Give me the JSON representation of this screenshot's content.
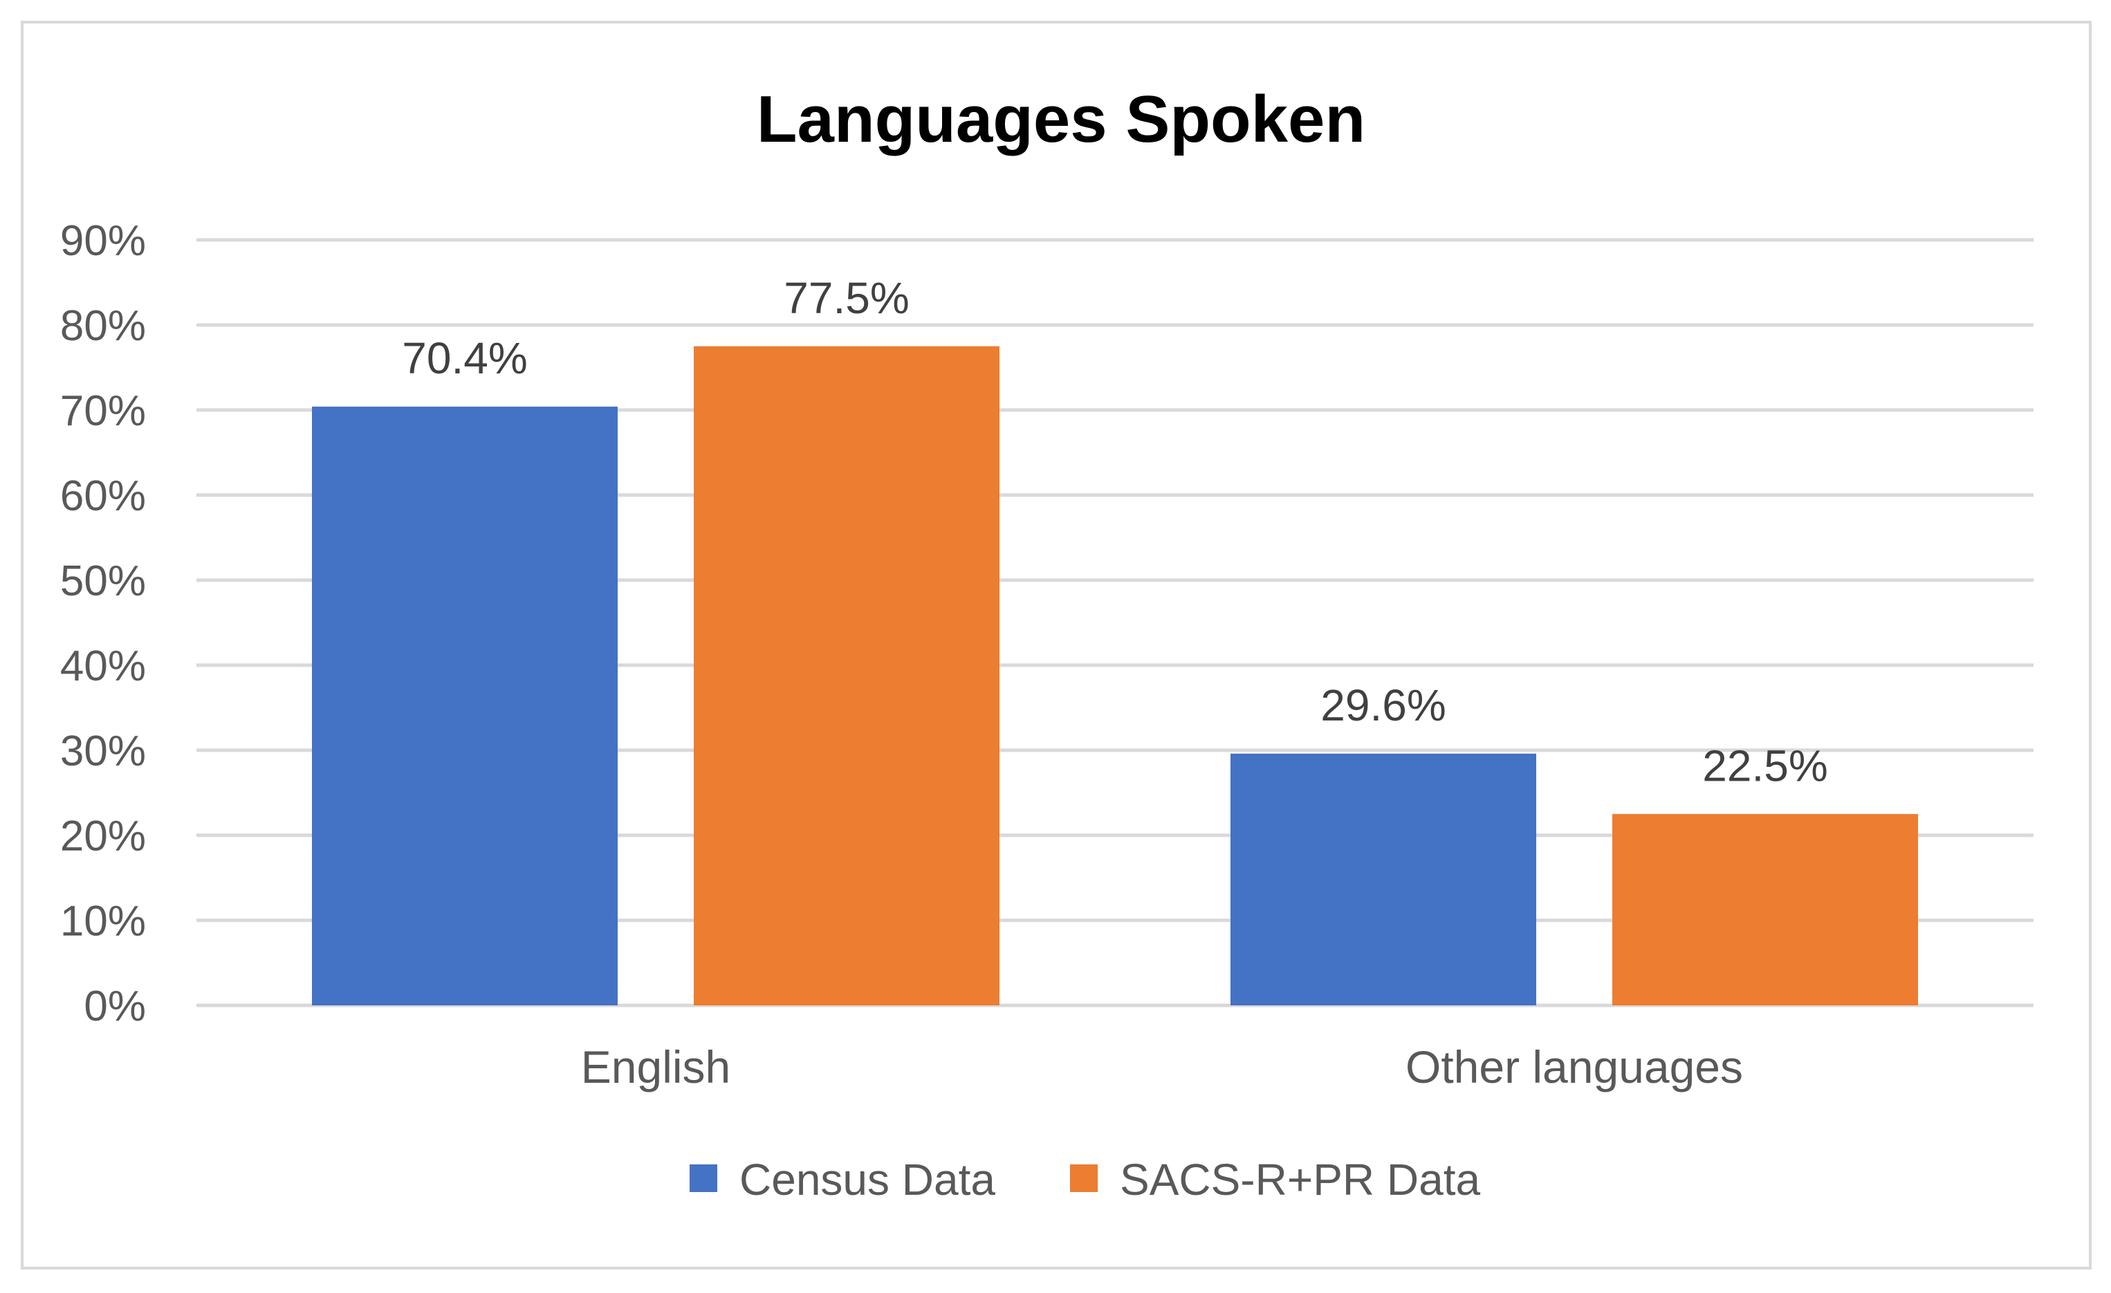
{
  "chart_data": {
    "type": "bar",
    "title": "Languages Spoken",
    "xlabel": "",
    "ylabel": "",
    "categories": [
      "English",
      "Other languages"
    ],
    "series": [
      {
        "name": "Census Data",
        "color": "#4472c4",
        "values": [
          70.4,
          29.6
        ],
        "labels": [
          "70.4%",
          "29.6%"
        ]
      },
      {
        "name": "SACS-R+PR Data",
        "color": "#ed7d31",
        "values": [
          77.5,
          22.5
        ],
        "labels": [
          "77.5%",
          "22.5%"
        ]
      }
    ],
    "ylim": [
      0,
      90
    ],
    "yticks": [
      0,
      10,
      20,
      30,
      40,
      50,
      60,
      70,
      80,
      90
    ],
    "ytick_labels": [
      "0%",
      "10%",
      "20%",
      "30%",
      "40%",
      "50%",
      "60%",
      "70%",
      "80%",
      "90%"
    ],
    "grid": true,
    "gridline_color": "#d9d9d9",
    "legend_position": "bottom"
  }
}
